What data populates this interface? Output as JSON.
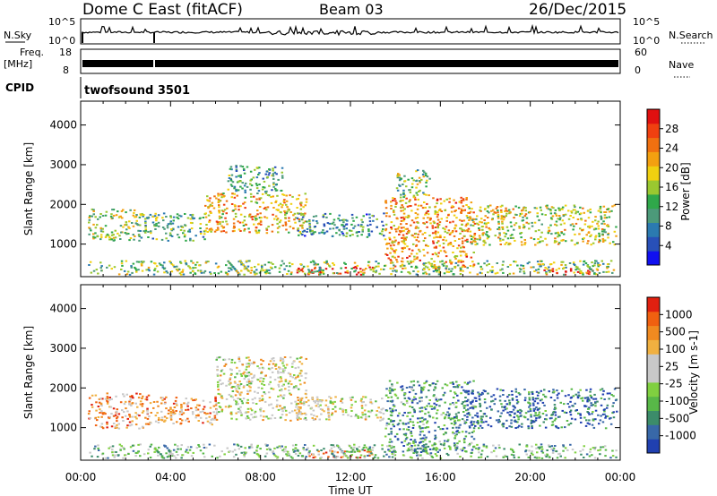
{
  "header": {
    "station": "Dome C East (fitACF)",
    "beam": "Beam 03",
    "date": "26/Dec/2015"
  },
  "status_panels": {
    "nsky_label": "N.Sky",
    "nsky_ticks": [
      "10^5",
      "10^0"
    ],
    "nsearch_label": "N.Search",
    "freq_label": "Freq.",
    "freq_unit": "[MHz]",
    "freq_ticks": [
      "18",
      "8"
    ],
    "nave_label": "Nave",
    "nave_ticks": [
      "60",
      "0"
    ],
    "cpid_label": "CPID",
    "cpid_value": "twofsound 3501"
  },
  "time_axis": {
    "label": "Time UT",
    "ticks": [
      "00:00",
      "04:00",
      "08:00",
      "12:00",
      "16:00",
      "20:00",
      "00:00"
    ]
  },
  "chart_data": [
    {
      "type": "heatmap",
      "name": "power-panel",
      "xlabel": "Time UT",
      "ylabel": "Slant Range [km]",
      "xlim_hours": [
        0,
        24
      ],
      "ylim": [
        180,
        4600
      ],
      "yticks": [
        1000,
        2000,
        3000,
        4000
      ],
      "colorbar": {
        "label": "Power [dB]",
        "ticks": [
          "28",
          "24",
          "20",
          "16",
          "12",
          "8",
          "4"
        ],
        "colors": [
          "#1010f0",
          "#2850b8",
          "#2b7ab0",
          "#4c9a7a",
          "#2fa84a",
          "#9ac830",
          "#f0d010",
          "#f3a010",
          "#f07010",
          "#f04010",
          "#e01010"
        ]
      },
      "regions": [
        {
          "t0": 0.3,
          "t1": 2.5,
          "r0": 1100,
          "r1": 1900,
          "level": 0.5
        },
        {
          "t0": 2.5,
          "t1": 5.5,
          "r0": 1100,
          "r1": 1800,
          "level": 0.4
        },
        {
          "t0": 5.5,
          "t1": 10.0,
          "r0": 1300,
          "r1": 2300,
          "level": 0.65
        },
        {
          "t0": 6.5,
          "t1": 9.0,
          "r0": 2300,
          "r1": 3000,
          "level": 0.35
        },
        {
          "t0": 9.5,
          "t1": 13.5,
          "r0": 1200,
          "r1": 1800,
          "level": 0.3
        },
        {
          "t0": 9.5,
          "t1": 13.0,
          "r0": 250,
          "r1": 450,
          "level": 0.95
        },
        {
          "t0": 13.5,
          "t1": 17.5,
          "r0": 400,
          "r1": 2200,
          "level": 0.7
        },
        {
          "t0": 14.0,
          "t1": 15.5,
          "r0": 2200,
          "r1": 2900,
          "level": 0.45
        },
        {
          "t0": 17.0,
          "t1": 23.8,
          "r0": 1000,
          "r1": 2000,
          "level": 0.55
        },
        {
          "t0": 20.5,
          "t1": 23.0,
          "r0": 250,
          "r1": 400,
          "level": 0.9
        },
        {
          "t0": 0.3,
          "t1": 23.8,
          "r0": 250,
          "r1": 600,
          "level": 0.45
        }
      ]
    },
    {
      "type": "heatmap",
      "name": "velocity-panel",
      "xlabel": "Time UT",
      "ylabel": "Slant Range [km]",
      "xlim_hours": [
        0,
        24
      ],
      "ylim": [
        180,
        4600
      ],
      "yticks": [
        1000,
        2000,
        3000,
        4000
      ],
      "colorbar": {
        "label": "Velocity [m s-1]",
        "ticks": [
          "1000",
          "500",
          "100",
          "25",
          "-25",
          "-100",
          "-500",
          "-1000"
        ],
        "colors": [
          "#2040b0",
          "#3868a8",
          "#3c8c6a",
          "#58b848",
          "#80d040",
          "#c8c8c8",
          "#c8c8c8",
          "#f0b040",
          "#f08a20",
          "#f06010",
          "#e02010"
        ]
      },
      "regions": [
        {
          "t0": 0.3,
          "t1": 3.0,
          "r0": 1000,
          "r1": 1900,
          "level": 0.75
        },
        {
          "t0": 3.0,
          "t1": 6.0,
          "r0": 1100,
          "r1": 1800,
          "level": 0.72
        },
        {
          "t0": 6.0,
          "t1": 10.0,
          "r0": 1200,
          "r1": 2800,
          "level": 0.55
        },
        {
          "t0": 9.5,
          "t1": 13.5,
          "r0": 1200,
          "r1": 1800,
          "level": 0.55
        },
        {
          "t0": 10.0,
          "t1": 13.0,
          "r0": 250,
          "r1": 450,
          "level": 0.8
        },
        {
          "t0": 13.5,
          "t1": 17.5,
          "r0": 400,
          "r1": 2200,
          "level": 0.25
        },
        {
          "t0": 17.0,
          "t1": 23.8,
          "r0": 1000,
          "r1": 2000,
          "level": 0.15
        },
        {
          "t0": 0.3,
          "t1": 23.8,
          "r0": 250,
          "r1": 600,
          "level": 0.35
        }
      ]
    }
  ]
}
